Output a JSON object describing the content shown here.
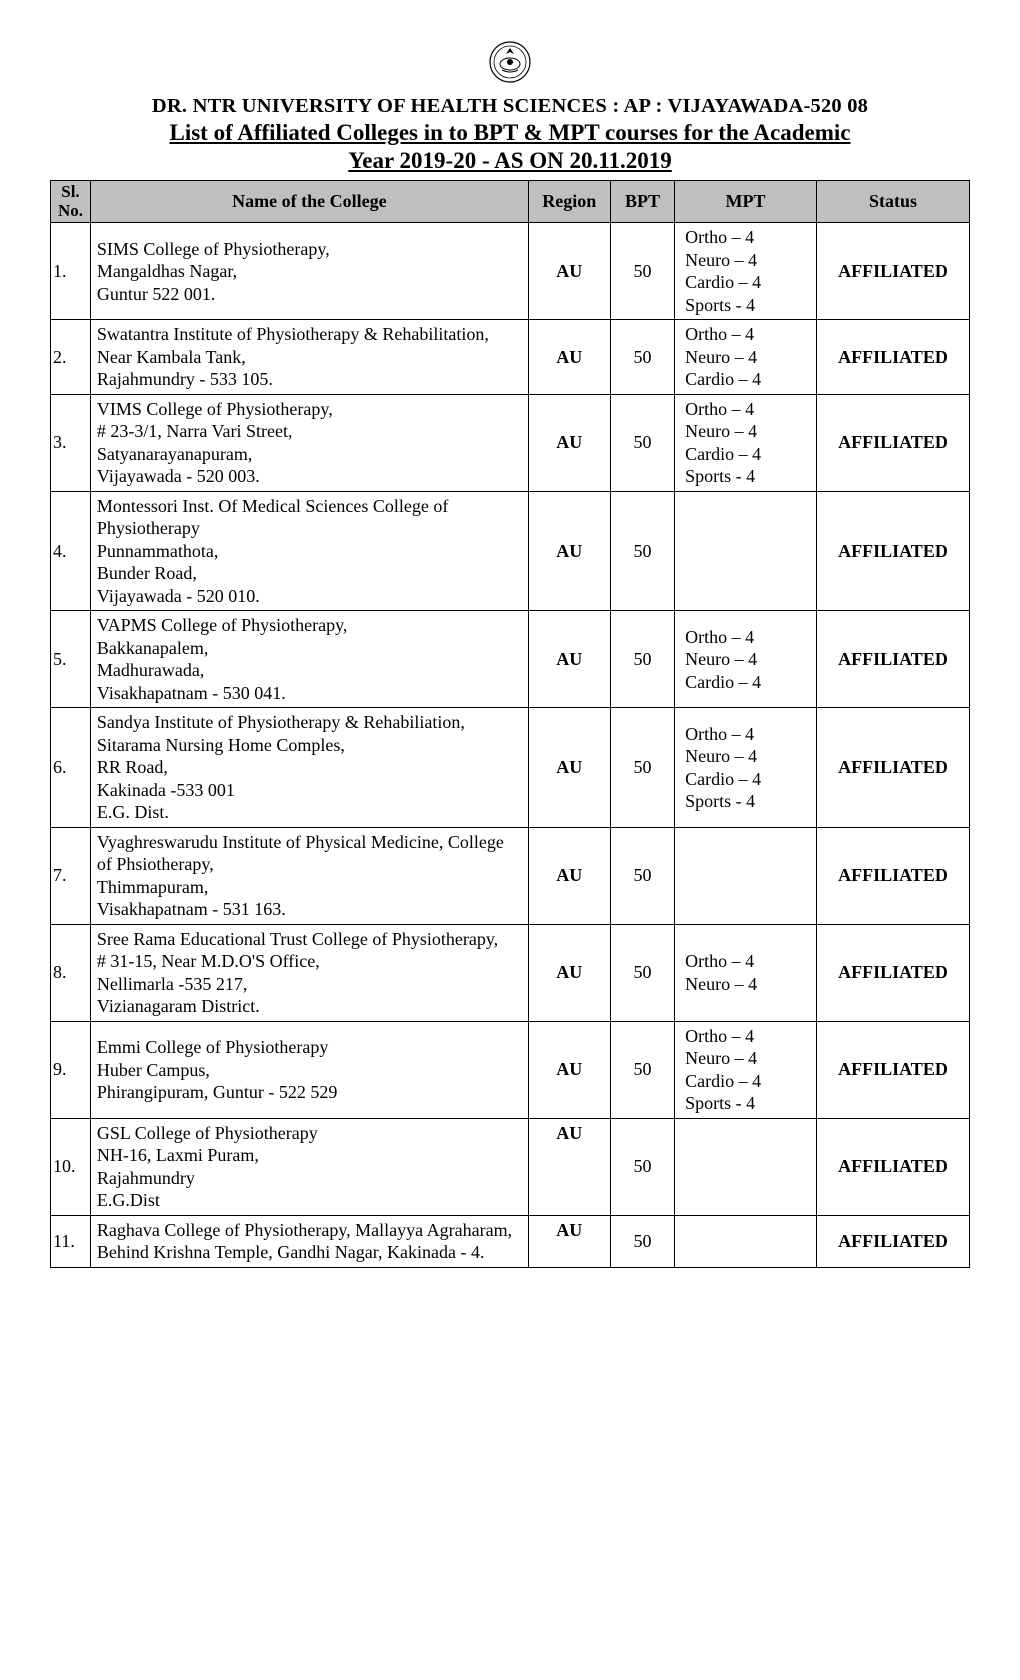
{
  "header": {
    "university": "DR. NTR UNIVERSITY OF HEALTH SCIENCES : AP : VIJAYAWADA-520 08",
    "title_line1": "List of Affiliated Colleges in to BPT & MPT courses for the Academic",
    "title_line2": "Year 2019-20 - AS ON 20.11.2019"
  },
  "table": {
    "columns": {
      "sl": "Sl. No.",
      "name": "Name of the College",
      "region": "Region",
      "bpt": "BPT",
      "mpt": "MPT",
      "status": "Status"
    },
    "rows": [
      {
        "sl": "1.",
        "name": "SIMS College of Physiotherapy,\nMangaldhas Nagar,\nGuntur 522 001.",
        "region": "AU",
        "bpt": "50",
        "mpt": "Ortho   – 4\nNeuro   – 4\nCardio  – 4\nSports   - 4",
        "status": "AFFILIATED",
        "region_align": "middle"
      },
      {
        "sl": "2.",
        "name": "Swatantra Institute of Physiotherapy & Rehabilitation,\nNear Kambala Tank,\nRajahmundry - 533 105.",
        "region": "AU",
        "bpt": "50",
        "mpt": "Ortho   – 4\nNeuro   – 4\nCardio  – 4",
        "status": "AFFILIATED",
        "region_align": "middle"
      },
      {
        "sl": "3.",
        "name": "VIMS College of Physiotherapy,\n# 23-3/1, Narra Vari Street,\nSatyanarayanapuram,\nVijayawada - 520 003.",
        "region": "AU",
        "bpt": "50",
        "mpt": "Ortho   – 4\nNeuro   – 4\nCardio  – 4\nSports   - 4",
        "status": "AFFILIATED",
        "region_align": "middle"
      },
      {
        "sl": "4.",
        "name": "Montessori Inst. Of Medical Sciences College of Physiotherapy\nPunnammathota,\nBunder Road,\nVijayawada - 520 010.",
        "region": "AU",
        "bpt": "50",
        "mpt": "",
        "status": "AFFILIATED",
        "region_align": "middle"
      },
      {
        "sl": "5.",
        "name": "VAPMS College of Physiotherapy,\nBakkanapalem,\nMadhurawada,\nVisakhapatnam - 530 041.",
        "region": "AU",
        "bpt": "50",
        "mpt": "Ortho   – 4\nNeuro   – 4\nCardio  – 4",
        "status": "AFFILIATED",
        "region_align": "middle"
      },
      {
        "sl": "6.",
        "name": "Sandya Institute of Physiotherapy & Rehabiliation, Sitarama Nursing Home Comples,\nRR Road,\nKakinada -533 001\nE.G. Dist.",
        "region": "AU",
        "bpt": "50",
        "mpt": "Ortho   – 4\nNeuro   – 4\nCardio  – 4\nSports   - 4",
        "status": "AFFILIATED",
        "region_align": "middle"
      },
      {
        "sl": "7.",
        "name": "Vyaghreswarudu Institute of Physical Medicine, College of Phsiotherapy,\nThimmapuram,\nVisakhapatnam - 531 163.",
        "region": "AU",
        "bpt": "50",
        "mpt": "",
        "status": "AFFILIATED",
        "region_align": "middle"
      },
      {
        "sl": "8.",
        "name": "Sree Rama Educational Trust College of Physiotherapy,\n# 31-15, Near M.D.O'S Office,\nNellimarla -535 217,\nVizianagaram District.",
        "region": "AU",
        "bpt": "50",
        "mpt": "Ortho   – 4\nNeuro   – 4",
        "status": "AFFILIATED",
        "region_align": "middle"
      },
      {
        "sl": "9.",
        "name": "Emmi College of Physiotherapy\nHuber Campus,\nPhirangipuram, Guntur - 522 529",
        "region": "AU",
        "bpt": "50",
        "mpt": "Ortho   – 4\nNeuro   – 4\nCardio  – 4\nSports   - 4",
        "status": "AFFILIATED",
        "region_align": "middle"
      },
      {
        "sl": "10.",
        "name": "GSL College of Physiotherapy\nNH-16, Laxmi Puram,\nRajahmundry\nE.G.Dist",
        "region": "AU",
        "bpt": "50",
        "mpt": "",
        "status": "AFFILIATED",
        "region_align": "top"
      },
      {
        "sl": "11.",
        "name": "Raghava College of Physiotherapy, Mallayya Agraharam, Behind Krishna Temple, Gandhi Nagar, Kakinada - 4.",
        "region": "AU",
        "bpt": "50",
        "mpt": "",
        "status": "AFFILIATED",
        "region_align": "top"
      }
    ]
  }
}
